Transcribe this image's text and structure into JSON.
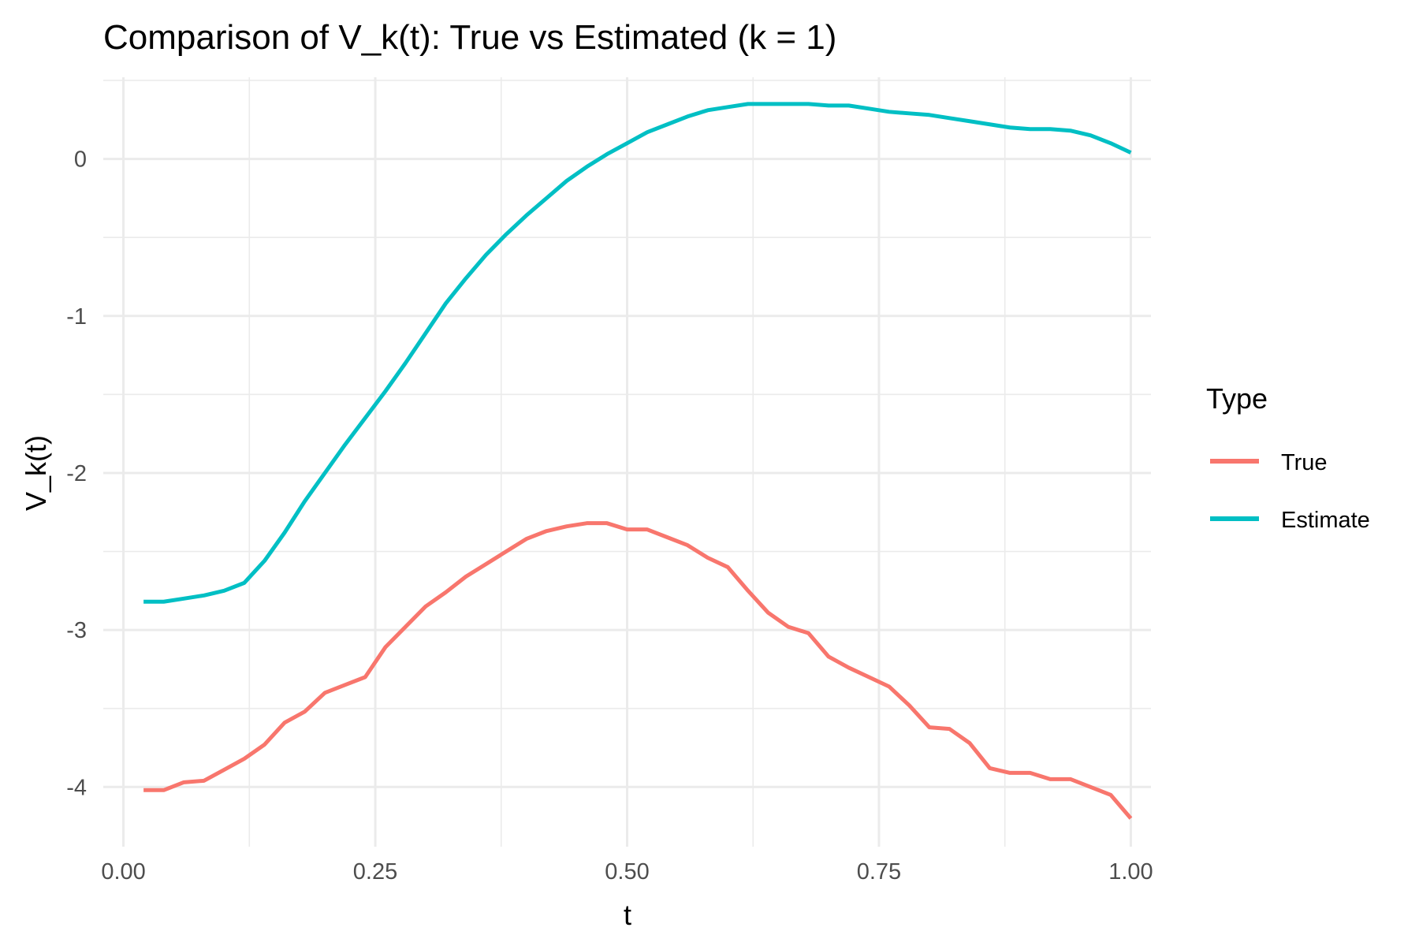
{
  "chart_data": {
    "type": "line",
    "title": "Comparison of V_k(t): True vs Estimated (k = 1)",
    "xlabel": "t",
    "ylabel": "V_k(t)",
    "xlim": [
      -0.02,
      1.02
    ],
    "ylim": [
      -4.38,
      0.52
    ],
    "x_ticks": [
      0.0,
      0.25,
      0.5,
      0.75,
      1.0
    ],
    "x_tick_labels": [
      "0.00",
      "0.25",
      "0.50",
      "0.75",
      "1.00"
    ],
    "y_ticks": [
      -4,
      -3,
      -2,
      -1,
      0
    ],
    "y_tick_labels": [
      "-4",
      "-3",
      "-2",
      "-1",
      "0"
    ],
    "grid": true,
    "legend": {
      "title": "Type",
      "placement": "right"
    },
    "series": [
      {
        "name": "True",
        "color": "#F8766D",
        "x": [
          0.02,
          0.04,
          0.06,
          0.08,
          0.1,
          0.12,
          0.14,
          0.16,
          0.18,
          0.2,
          0.22,
          0.24,
          0.26,
          0.28,
          0.3,
          0.32,
          0.34,
          0.36,
          0.38,
          0.4,
          0.42,
          0.44,
          0.46,
          0.48,
          0.5,
          0.52,
          0.54,
          0.56,
          0.58,
          0.6,
          0.62,
          0.64,
          0.66,
          0.68,
          0.7,
          0.72,
          0.74,
          0.76,
          0.78,
          0.8,
          0.82,
          0.84,
          0.86,
          0.88,
          0.9,
          0.92,
          0.94,
          0.96,
          0.98,
          1.0
        ],
        "y": [
          -4.02,
          -4.02,
          -3.97,
          -3.96,
          -3.89,
          -3.82,
          -3.73,
          -3.59,
          -3.52,
          -3.4,
          -3.35,
          -3.3,
          -3.11,
          -2.98,
          -2.85,
          -2.76,
          -2.66,
          -2.58,
          -2.5,
          -2.42,
          -2.37,
          -2.34,
          -2.32,
          -2.32,
          -2.36,
          -2.36,
          -2.41,
          -2.46,
          -2.54,
          -2.6,
          -2.75,
          -2.89,
          -2.98,
          -3.02,
          -3.17,
          -3.24,
          -3.3,
          -3.36,
          -3.48,
          -3.62,
          -3.63,
          -3.72,
          -3.88,
          -3.91,
          -3.91,
          -3.95,
          -3.95,
          -4.0,
          -4.05,
          -4.2
        ]
      },
      {
        "name": "Estimate",
        "color": "#00BFC4",
        "x": [
          0.02,
          0.04,
          0.06,
          0.08,
          0.1,
          0.12,
          0.14,
          0.16,
          0.18,
          0.2,
          0.22,
          0.24,
          0.26,
          0.28,
          0.3,
          0.32,
          0.34,
          0.36,
          0.38,
          0.4,
          0.42,
          0.44,
          0.46,
          0.48,
          0.5,
          0.52,
          0.54,
          0.56,
          0.58,
          0.6,
          0.62,
          0.64,
          0.66,
          0.68,
          0.7,
          0.72,
          0.74,
          0.76,
          0.78,
          0.8,
          0.82,
          0.84,
          0.86,
          0.88,
          0.9,
          0.92,
          0.94,
          0.96,
          0.98,
          1.0
        ],
        "y": [
          -2.82,
          -2.82,
          -2.8,
          -2.78,
          -2.75,
          -2.7,
          -2.56,
          -2.38,
          -2.18,
          -2.0,
          -1.82,
          -1.65,
          -1.48,
          -1.3,
          -1.11,
          -0.92,
          -0.76,
          -0.61,
          -0.48,
          -0.36,
          -0.25,
          -0.14,
          -0.05,
          0.03,
          0.1,
          0.17,
          0.22,
          0.27,
          0.31,
          0.33,
          0.35,
          0.35,
          0.35,
          0.35,
          0.34,
          0.34,
          0.32,
          0.3,
          0.29,
          0.28,
          0.26,
          0.24,
          0.22,
          0.2,
          0.19,
          0.19,
          0.18,
          0.15,
          0.1,
          0.04
        ]
      }
    ]
  }
}
